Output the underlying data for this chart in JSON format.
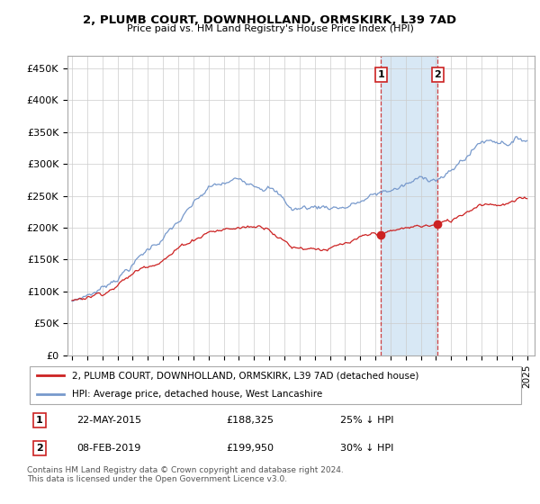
{
  "title": "2, PLUMB COURT, DOWNHOLLAND, ORMSKIRK, L39 7AD",
  "subtitle": "Price paid vs. HM Land Registry's House Price Index (HPI)",
  "ylabel_ticks": [
    "£0",
    "£50K",
    "£100K",
    "£150K",
    "£200K",
    "£250K",
    "£300K",
    "£350K",
    "£400K",
    "£450K"
  ],
  "ytick_values": [
    0,
    50000,
    100000,
    150000,
    200000,
    250000,
    300000,
    350000,
    400000,
    450000
  ],
  "ylim": [
    0,
    470000
  ],
  "xlim_left": 1994.7,
  "xlim_right": 2025.5,
  "sale1_x": 2015.38,
  "sale2_x": 2019.1,
  "sale1_price": 188325,
  "sale2_price": 199950,
  "red_line_label": "2, PLUMB COURT, DOWNHOLLAND, ORMSKIRK, L39 7AD (detached house)",
  "blue_line_label": "HPI: Average price, detached house, West Lancashire",
  "sale1_date": "22-MAY-2015",
  "sale2_date": "08-FEB-2019",
  "sale1_pct": "25% ↓ HPI",
  "sale2_pct": "30% ↓ HPI",
  "footnote": "Contains HM Land Registry data © Crown copyright and database right 2024.\nThis data is licensed under the Open Government Licence v3.0.",
  "red_color": "#cc2222",
  "blue_color": "#7799cc",
  "shade_color": "#d8e8f5",
  "grid_color": "#cccccc"
}
